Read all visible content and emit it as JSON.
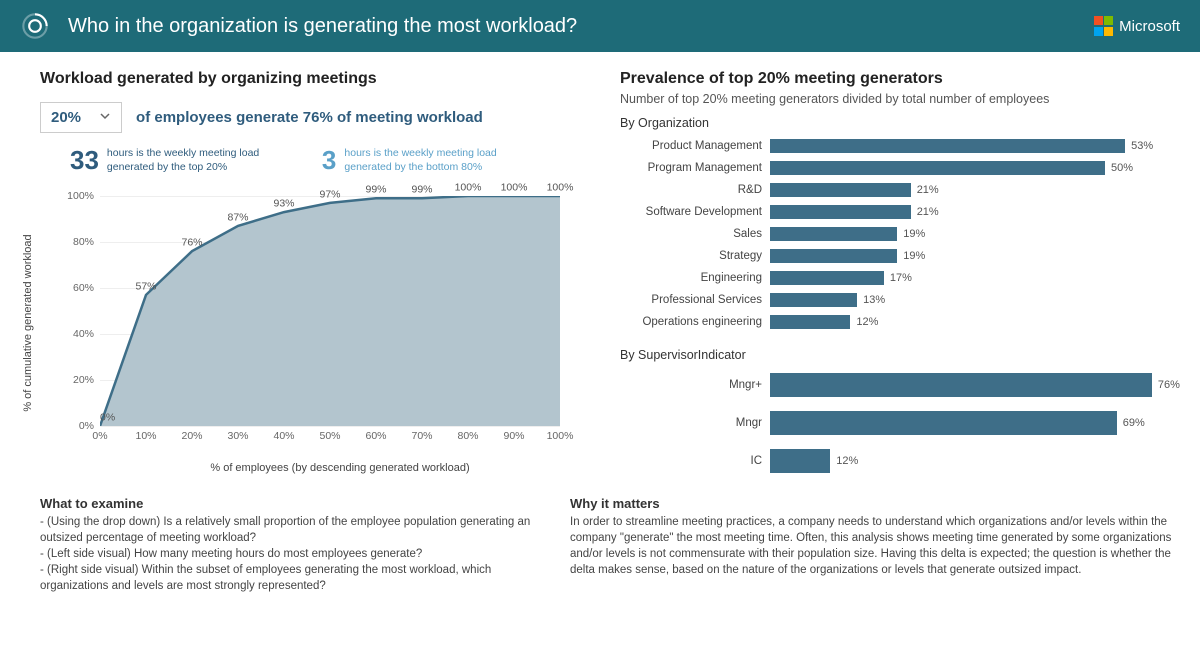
{
  "header": {
    "title": "Who in the organization is generating the most workload?",
    "brand": "Microsoft",
    "accent": "#1e6b78"
  },
  "left": {
    "title": "Workload generated by organizing meetings",
    "dropdown_value": "20%",
    "sentence": "of employees generate 76% of meeting workload",
    "stat1_num": "33",
    "stat1_txt": "hours is the weekly meeting load generated by the top 20%",
    "stat1_color": "#2f5c7d",
    "stat2_num": "3",
    "stat2_txt": "hours is the weekly meeting load generated by the bottom 80%",
    "stat2_color": "#5aa0c8",
    "chart": {
      "type": "area",
      "x_label": "% of employees (by descending generated workload)",
      "y_label": "% of cumulative generated workload",
      "x_ticks": [
        "0%",
        "10%",
        "20%",
        "30%",
        "40%",
        "50%",
        "60%",
        "70%",
        "80%",
        "90%",
        "100%"
      ],
      "y_ticks": [
        "0%",
        "20%",
        "40%",
        "60%",
        "80%",
        "100%"
      ],
      "points_pct": [
        0,
        57,
        76,
        87,
        93,
        97,
        99,
        99,
        100,
        100,
        100
      ],
      "point_labels": [
        "0%",
        "57%",
        "76%",
        "87%",
        "93%",
        "97%",
        "99%",
        "99%",
        "100%",
        "100%",
        "100%"
      ],
      "line_color": "#3e6e88",
      "fill_color": "#b3c5ce",
      "line_width": 2.5,
      "xlim": [
        0,
        100
      ],
      "ylim": [
        0,
        100
      ],
      "grid_color": "#eeeeee"
    }
  },
  "right": {
    "title": "Prevalence of top 20% meeting generators",
    "subtitle": "Number of top 20% meeting generators divided by total number of employees",
    "bar_color": "#3e6e88",
    "org": {
      "heading": "By Organization",
      "max_pct": 60,
      "rows": [
        {
          "label": "Product Management",
          "pct": 53
        },
        {
          "label": "Program Management",
          "pct": 50
        },
        {
          "label": "R&D",
          "pct": 21
        },
        {
          "label": "Software Development",
          "pct": 21
        },
        {
          "label": "Sales",
          "pct": 19
        },
        {
          "label": "Strategy",
          "pct": 19
        },
        {
          "label": "Engineering",
          "pct": 17
        },
        {
          "label": "Professional Services",
          "pct": 13
        },
        {
          "label": "Operations engineering",
          "pct": 12
        }
      ]
    },
    "sup": {
      "heading": "By SupervisorIndicator",
      "max_pct": 80,
      "rows": [
        {
          "label": "Mngr+",
          "pct": 76
        },
        {
          "label": "Mngr",
          "pct": 69
        },
        {
          "label": "IC",
          "pct": 12
        }
      ]
    }
  },
  "footer": {
    "examine_title": "What to examine",
    "examine_lines": [
      "- (Using the drop down) Is a relatively small proportion of the employee population generating an outsized percentage of meeting workload?",
      "- (Left side visual) How many meeting hours do most employees generate?",
      "- (Right side visual) Within the subset of employees generating the most workload, which organizations and levels are most strongly represented?"
    ],
    "matters_title": "Why it matters",
    "matters_text": "In order to streamline meeting practices, a company needs to understand which organizations and/or levels within the company \"generate\" the most meeting time. Often, this analysis shows meeting time generated by some organizations and/or levels is not commensurate with their population size. Having this delta is expected; the question is whether the delta makes sense, based on the nature of the organizations or levels that generate outsized impact."
  }
}
